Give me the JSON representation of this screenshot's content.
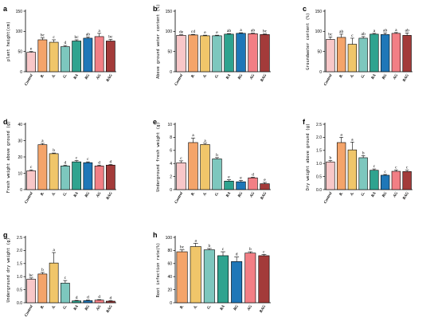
{
  "figure": {
    "colors": {
      "Control": "#f8c7c8",
      "R.": "#f4a46a",
      "A.": "#f0c66a",
      "G.": "#7dc7be",
      "RA": "#2fa38f",
      "RG": "#1f77b8",
      "AG": "#f27f85",
      "RAG": "#a33b3a"
    }
  },
  "chart_data": [
    {
      "letter": "a",
      "type": "bar",
      "ylabel": "plant height(cm)",
      "ylim": [
        0,
        150
      ],
      "yticks": [
        0,
        50,
        100,
        150
      ],
      "categories": [
        "Control",
        "R.",
        "A.",
        "G.",
        "RA",
        "RG",
        "AG",
        "RAG"
      ],
      "values": [
        48,
        79,
        73,
        62,
        76,
        83,
        87,
        76
      ],
      "errors": [
        2,
        5,
        6,
        3,
        3,
        3,
        8,
        4
      ],
      "labels": [
        "e",
        "bc",
        "c",
        "d",
        "bc",
        "ab",
        "a",
        "bc"
      ]
    },
    {
      "letter": "b",
      "type": "bar",
      "ylabel": "Above ground water content (%)",
      "ylim": [
        0,
        150
      ],
      "yticks": [
        0,
        50,
        100,
        150
      ],
      "categories": [
        "Control",
        "R.",
        "A.",
        "G.",
        "RA",
        "RG",
        "AG",
        "RAG"
      ],
      "values": [
        90,
        91,
        89,
        89,
        93,
        95,
        94,
        92
      ],
      "errors": [
        1.5,
        1.5,
        1.5,
        1.5,
        1.5,
        1.5,
        1.5,
        1.5
      ],
      "labels": [
        "de",
        "cd",
        "e",
        "e",
        "ab",
        "a",
        "ab",
        "bc"
      ]
    },
    {
      "letter": "c",
      "type": "bar",
      "ylabel": "Groundwater content (%)",
      "ylim": [
        0,
        150
      ],
      "yticks": [
        0,
        50,
        100,
        150
      ],
      "categories": [
        "Control",
        "R.",
        "A.",
        "G.",
        "RA",
        "RG",
        "AG",
        "RAG"
      ],
      "values": [
        80,
        85,
        68,
        83,
        93,
        92,
        95,
        90
      ],
      "errors": [
        6,
        8,
        15,
        4,
        2,
        4,
        2,
        6
      ],
      "labels": [
        "bc",
        "ab",
        "c",
        "ab",
        "a",
        "ab",
        "a",
        "ab"
      ]
    },
    {
      "letter": "d",
      "type": "bar",
      "ylabel": "Fresh weight above ground (g)",
      "ylim": [
        0,
        40
      ],
      "yticks": [
        0,
        10,
        20,
        30,
        40
      ],
      "categories": [
        "Control",
        "R.",
        "A.",
        "G.",
        "RA",
        "RG",
        "AG",
        "RAG"
      ],
      "values": [
        11.5,
        27.5,
        22,
        14.5,
        17,
        16.5,
        14.5,
        15
      ],
      "errors": [
        0.6,
        0.8,
        0.4,
        0.5,
        0.8,
        0.5,
        0.5,
        0.4
      ],
      "labels": [
        "c",
        "a",
        "b",
        "d",
        "c",
        "c",
        "d",
        "d"
      ]
    },
    {
      "letter": "e",
      "type": "bar",
      "ylabel": "Underground fresh weight (g)",
      "ylim": [
        0,
        10
      ],
      "yticks": [
        0,
        2,
        4,
        6,
        8,
        10
      ],
      "categories": [
        "Control",
        "R.",
        "A.",
        "G.",
        "RA",
        "RG",
        "AG",
        "RAG"
      ],
      "values": [
        4.1,
        7.2,
        6.9,
        4.7,
        1.3,
        1.2,
        1.8,
        0.9
      ],
      "errors": [
        0.3,
        0.7,
        0.2,
        0.2,
        0.2,
        0.2,
        0.1,
        0.2
      ],
      "labels": [
        "c",
        "a",
        "a",
        "b",
        "e",
        "e",
        "d",
        "e"
      ]
    },
    {
      "letter": "f",
      "type": "bar",
      "ylabel": "Dry weight above ground (g)",
      "ylim": [
        0,
        2.5
      ],
      "yticks": [
        0,
        0.5,
        1.0,
        1.5,
        2.0,
        2.5
      ],
      "categories": [
        "Control",
        "R.",
        "A.",
        "G.",
        "RA",
        "RG",
        "AG",
        "RAG"
      ],
      "values": [
        1.06,
        1.8,
        1.52,
        1.22,
        0.74,
        0.55,
        0.7,
        0.69
      ],
      "errors": [
        0.05,
        0.2,
        0.3,
        0.08,
        0.05,
        0.03,
        0.05,
        0.05
      ],
      "labels": [
        "b",
        "a",
        "a",
        "b",
        "c",
        "c",
        "c",
        "c"
      ]
    },
    {
      "letter": "g",
      "type": "bar",
      "ylabel": "Underground dry weight (g)",
      "ylim": [
        0,
        2.5
      ],
      "yticks": [
        0,
        0.5,
        1.0,
        1.5,
        2.0,
        2.5
      ],
      "categories": [
        "Control",
        "R.",
        "A.",
        "G.",
        "RA",
        "RG",
        "AG",
        "RAG"
      ],
      "values": [
        0.9,
        1.1,
        1.52,
        0.75,
        0.07,
        0.08,
        0.1,
        0.06
      ],
      "errors": [
        0.05,
        0.06,
        0.4,
        0.1,
        0.02,
        0.02,
        0.02,
        0.02
      ],
      "labels": [
        "bc",
        "b",
        "a",
        "c",
        "d",
        "d",
        "d",
        "d"
      ]
    },
    {
      "letter": "h",
      "type": "bar",
      "ylabel": "Root infection rate(%)",
      "ylim": [
        0,
        100
      ],
      "yticks": [
        0,
        20,
        40,
        60,
        80,
        100
      ],
      "categories": [
        "R.",
        "A.",
        "G.",
        "RA",
        "RG",
        "AG",
        "RAG"
      ],
      "values": [
        78,
        86,
        81,
        72,
        63,
        76,
        72
      ],
      "errors": [
        3,
        5,
        2,
        6,
        7,
        2,
        2
      ],
      "labels": [
        "bc",
        "a",
        "b",
        "c",
        "d",
        "b",
        "c"
      ]
    }
  ]
}
